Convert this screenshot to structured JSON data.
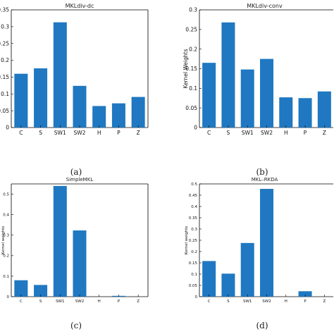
{
  "bar_color": "#1f78c1",
  "chart_data": [
    {
      "type": "bar",
      "title": "MKLdiv-dc",
      "caption": "(a)",
      "ylabel": "",
      "categories": [
        "C",
        "S",
        "SW1",
        "SW2",
        "H",
        "P",
        "Z"
      ],
      "values": [
        0.16,
        0.176,
        0.313,
        0.124,
        0.064,
        0.072,
        0.091
      ],
      "ylim": [
        0,
        0.35
      ],
      "yticks": [
        0,
        0.05,
        0.1,
        0.15,
        0.2,
        0.25,
        0.3,
        0.35
      ],
      "ytick_labels": [
        "0",
        "0.05",
        "0.1",
        "0.15",
        "0.2",
        "0.25",
        "0.3",
        "0.35"
      ]
    },
    {
      "type": "bar",
      "title": "MKLdiv-conv",
      "caption": "(b)",
      "ylabel": "Kernel Weights",
      "categories": [
        "C",
        "S",
        "SW1",
        "SW2",
        "H",
        "P",
        "Z"
      ],
      "values": [
        0.165,
        0.268,
        0.148,
        0.175,
        0.077,
        0.075,
        0.092
      ],
      "ylim": [
        0,
        0.3
      ],
      "yticks": [
        0,
        0.05,
        0.1,
        0.15,
        0.2,
        0.25,
        0.3
      ],
      "ytick_labels": [
        "0",
        "0.05",
        "0.1",
        "0.15",
        "0.2",
        "0.25",
        "0.3"
      ]
    },
    {
      "type": "bar",
      "title": "SimpleMKL",
      "caption": "(c)",
      "ylabel": "Kernel weights",
      "categories": [
        "C",
        "S",
        "SW1",
        "SW2",
        "H",
        "P",
        "Z"
      ],
      "values": [
        0.08,
        0.057,
        0.54,
        0.323,
        0.0,
        0.004,
        0.0
      ],
      "ylim": [
        0,
        0.55
      ],
      "yticks": [
        0,
        0.1,
        0.2,
        0.3,
        0.4,
        0.5
      ],
      "ytick_labels": [
        "0",
        "0.1",
        "0.2",
        "0.3",
        "0.4",
        "0.5"
      ]
    },
    {
      "type": "bar",
      "title": "MKL–RKDA",
      "caption": "(d)",
      "ylabel": "Kernel weights",
      "categories": [
        "C",
        "S",
        "SW1",
        "SW2",
        "H",
        "P",
        "Z"
      ],
      "values": [
        0.158,
        0.102,
        0.238,
        0.478,
        0.0,
        0.024,
        0.0
      ],
      "ylim": [
        0,
        0.5
      ],
      "yticks": [
        0,
        0.05,
        0.1,
        0.15,
        0.2,
        0.25,
        0.3,
        0.35,
        0.4,
        0.45,
        0.5
      ],
      "ytick_labels": [
        "0",
        "0.05",
        "0.1",
        "0.15",
        "0.2",
        "0.25",
        "0.3",
        "0.35",
        "0.4",
        "0.45",
        "0.5"
      ]
    }
  ]
}
